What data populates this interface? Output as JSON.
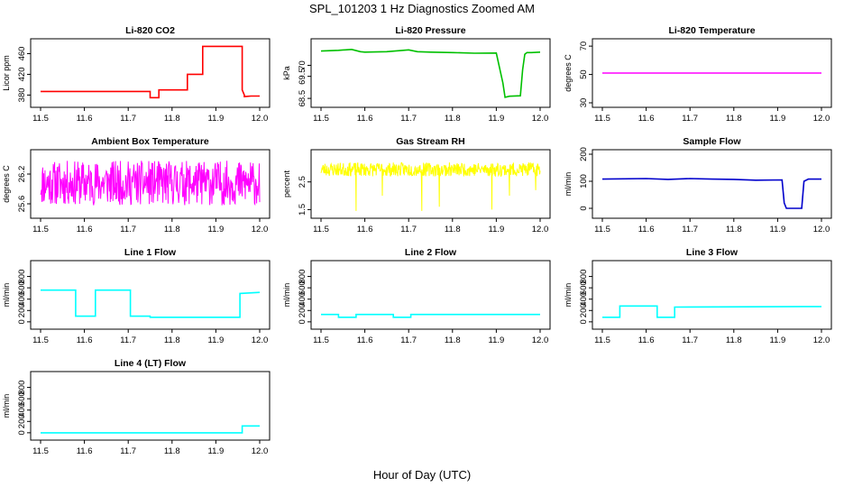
{
  "figure": {
    "title": "SPL_101203  1 Hz Diagnostics Zoomed AM",
    "xlabel": "Hour of Day (UTC)"
  },
  "chart_data": [
    {
      "type": "line",
      "title": "Li-820 CO2",
      "ylabel": "Licor ppm",
      "color": "#ff0000",
      "xlim": [
        11.5,
        12.0
      ],
      "ylim": [
        365,
        480
      ],
      "yticks": [
        380,
        420,
        460
      ],
      "xticks": [
        11.5,
        11.6,
        11.7,
        11.8,
        11.9,
        12.0
      ],
      "x": [
        11.5,
        11.75,
        11.75,
        11.77,
        11.77,
        11.835,
        11.835,
        11.87,
        11.87,
        11.96,
        11.96,
        11.965,
        11.965,
        11.98,
        12.0
      ],
      "y": [
        387,
        387,
        375,
        375,
        390,
        390,
        420,
        420,
        474,
        474,
        390,
        380,
        377,
        378,
        378
      ]
    },
    {
      "type": "line",
      "title": "Li-820 Pressure",
      "ylabel": "kPa",
      "color": "#00c000",
      "xlim": [
        11.5,
        12.0
      ],
      "ylim": [
        68.3,
        71.0
      ],
      "yticks": [
        68.5,
        69.5,
        70.0
      ],
      "xticks": [
        11.5,
        11.6,
        11.7,
        11.8,
        11.9,
        12.0
      ],
      "x": [
        11.5,
        11.54,
        11.57,
        11.59,
        11.6,
        11.65,
        11.7,
        11.72,
        11.75,
        11.8,
        11.85,
        11.9,
        11.915,
        11.92,
        11.93,
        11.955,
        11.96,
        11.965,
        11.97,
        11.98,
        12.0
      ],
      "y": [
        70.65,
        70.68,
        70.72,
        70.62,
        70.6,
        70.62,
        70.7,
        70.62,
        70.6,
        70.58,
        70.55,
        70.56,
        69.2,
        68.55,
        68.6,
        68.62,
        69.8,
        70.5,
        70.58,
        70.58,
        70.6
      ]
    },
    {
      "type": "line",
      "title": "Li-820 Temperature",
      "ylabel": "degrees C",
      "color": "#ff00ff",
      "xlim": [
        11.5,
        12.0
      ],
      "ylim": [
        30,
        72
      ],
      "yticks": [
        30,
        50,
        70
      ],
      "xticks": [
        11.5,
        11.6,
        11.7,
        11.8,
        11.9,
        12.0
      ],
      "x": [
        11.5,
        12.0
      ],
      "y": [
        51,
        51
      ]
    },
    {
      "type": "line",
      "title": "Ambient Box Temperature",
      "ylabel": "degrees C",
      "color": "#ff00ff",
      "xlim": [
        11.5,
        12.0
      ],
      "ylim": [
        25.4,
        26.6
      ],
      "yticks": [
        25.6,
        26.2
      ],
      "xticks": [
        11.5,
        11.6,
        11.7,
        11.8,
        11.9,
        12.0
      ],
      "noise": {
        "center": 26.02,
        "spread": 0.45,
        "points": 500,
        "seed": 11
      },
      "x": [
        11.5,
        12.0
      ],
      "y": [
        26.02,
        26.02
      ]
    },
    {
      "type": "line",
      "title": "Gas Stream RH",
      "ylabel": "percent",
      "color": "#ffff00",
      "xlim": [
        11.5,
        12.0
      ],
      "ylim": [
        1.35,
        3.5
      ],
      "yticks": [
        1.5,
        2.5
      ],
      "xticks": [
        11.5,
        11.6,
        11.7,
        11.8,
        11.9,
        12.0
      ],
      "noise": {
        "center": 2.95,
        "spread": 0.25,
        "points": 500,
        "seed": 23
      },
      "spikes": [
        [
          11.58,
          1.45
        ],
        [
          11.64,
          2.0
        ],
        [
          11.73,
          1.45
        ],
        [
          11.77,
          1.6
        ],
        [
          11.89,
          1.5
        ],
        [
          11.93,
          2.0
        ],
        [
          11.99,
          2.2
        ]
      ],
      "x": [
        11.5,
        12.0
      ],
      "y": [
        2.95,
        2.95
      ]
    },
    {
      "type": "line",
      "title": "Sample Flow",
      "ylabel": "ml/min",
      "color": "#0000cc",
      "xlim": [
        11.5,
        12.0
      ],
      "ylim": [
        -20,
        200
      ],
      "yticks": [
        0,
        100,
        200
      ],
      "xticks": [
        11.5,
        11.6,
        11.7,
        11.8,
        11.9,
        12.0
      ],
      "x": [
        11.5,
        11.6,
        11.65,
        11.7,
        11.75,
        11.8,
        11.85,
        11.91,
        11.915,
        11.92,
        11.955,
        11.96,
        11.97,
        12.0
      ],
      "y": [
        108,
        110,
        107,
        110,
        108,
        107,
        104,
        105,
        20,
        0,
        0,
        100,
        108,
        108
      ]
    },
    {
      "type": "line",
      "title": "Line 1 Flow",
      "ylabel": "ml/min",
      "color": "#00ffff",
      "xlim": [
        11.5,
        12.0
      ],
      "ylim": [
        -50,
        1000
      ],
      "yticks": [
        0,
        200,
        400,
        600,
        800
      ],
      "xticks": [
        11.5,
        11.6,
        11.7,
        11.8,
        11.9,
        12.0
      ],
      "x": [
        11.5,
        11.58,
        11.58,
        11.625,
        11.625,
        11.705,
        11.705,
        11.75,
        11.75,
        11.955,
        11.955,
        12.0
      ],
      "y": [
        560,
        560,
        100,
        100,
        560,
        560,
        100,
        100,
        80,
        80,
        500,
        520
      ]
    },
    {
      "type": "line",
      "title": "Line 2 Flow",
      "ylabel": "ml/min",
      "color": "#00ffff",
      "xlim": [
        11.5,
        12.0
      ],
      "ylim": [
        -50,
        1000
      ],
      "yticks": [
        0,
        200,
        400,
        600,
        800
      ],
      "xticks": [
        11.5,
        11.6,
        11.7,
        11.8,
        11.9,
        12.0
      ],
      "x": [
        11.5,
        11.54,
        11.54,
        11.58,
        11.58,
        11.665,
        11.665,
        11.705,
        11.705,
        12.0
      ],
      "y": [
        130,
        130,
        80,
        80,
        130,
        130,
        80,
        80,
        130,
        130
      ]
    },
    {
      "type": "line",
      "title": "Line 3 Flow",
      "ylabel": "ml/min",
      "color": "#00ffff",
      "xlim": [
        11.5,
        12.0
      ],
      "ylim": [
        -50,
        1000
      ],
      "yticks": [
        0,
        200,
        400,
        600,
        800
      ],
      "xticks": [
        11.5,
        11.6,
        11.7,
        11.8,
        11.9,
        12.0
      ],
      "x": [
        11.5,
        11.54,
        11.54,
        11.625,
        11.625,
        11.665,
        11.665,
        12.0
      ],
      "y": [
        80,
        80,
        280,
        280,
        80,
        80,
        260,
        270
      ]
    },
    {
      "type": "line",
      "title": "Line 4 (LT) Flow",
      "ylabel": "ml/min",
      "color": "#00ffff",
      "xlim": [
        11.5,
        12.0
      ],
      "ylim": [
        -50,
        1000
      ],
      "yticks": [
        0,
        200,
        400,
        600,
        800
      ],
      "xticks": [
        11.5,
        11.6,
        11.7,
        11.8,
        11.9,
        12.0
      ],
      "x": [
        11.5,
        11.96,
        11.96,
        12.0
      ],
      "y": [
        0,
        0,
        120,
        120
      ]
    }
  ]
}
